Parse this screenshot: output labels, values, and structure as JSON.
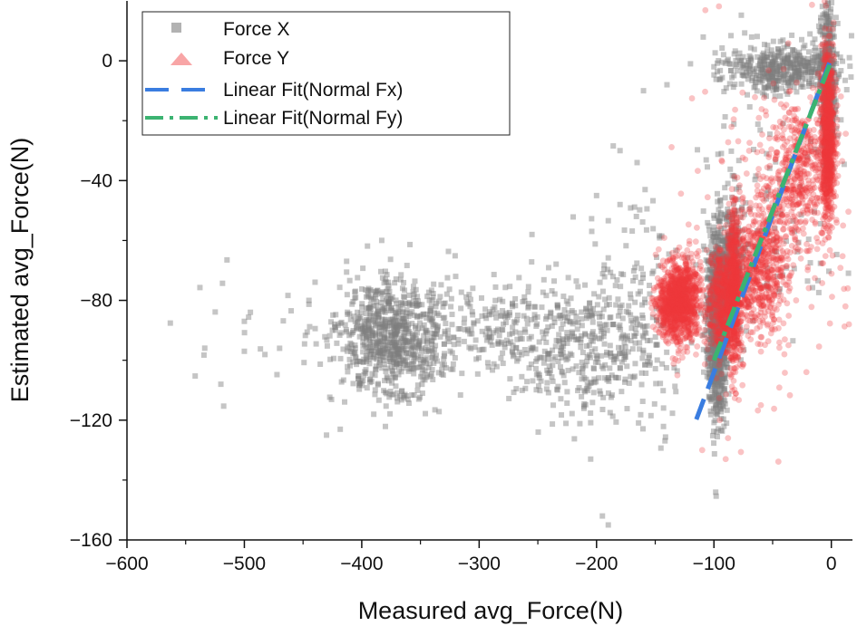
{
  "chart_data": {
    "type": "scatter",
    "title": "",
    "xlabel": "Measured avg_Force(N)",
    "ylabel": "Estimated avg_Force(N)",
    "xlim": [
      -600,
      18
    ],
    "ylim": [
      -160,
      20
    ],
    "x_ticks": [
      -600,
      -500,
      -400,
      -300,
      -200,
      -100,
      0
    ],
    "y_ticks": [
      -160,
      -120,
      -80,
      -40,
      0
    ],
    "x_tick_labels": [
      "−600",
      "−500",
      "−400",
      "−300",
      "−200",
      "−100",
      "0"
    ],
    "y_tick_labels": [
      "−160",
      "−120",
      "−80",
      "−40",
      "0"
    ],
    "legend_position": "top-left",
    "series": [
      {
        "name": "Force X",
        "marker": "square",
        "color": "#7f7f7f",
        "clusters": [
          {
            "cx": -375,
            "cy": -93,
            "sx": 22,
            "sy": 10,
            "n": 750
          },
          {
            "cx": -290,
            "cy": -89,
            "sx": 30,
            "sy": 8,
            "n": 200
          },
          {
            "cx": -210,
            "cy": -95,
            "sx": 32,
            "sy": 12,
            "n": 380
          },
          {
            "cx": -170,
            "cy": -80,
            "sx": 22,
            "sy": 22,
            "n": 120
          },
          {
            "cx": -97,
            "cy": -88,
            "sx": 4,
            "sy": 14,
            "n": 1100
          },
          {
            "cx": -87,
            "cy": -68,
            "sx": 6,
            "sy": 10,
            "n": 350
          },
          {
            "cx": -40,
            "cy": -3,
            "sx": 25,
            "sy": 4,
            "n": 450
          },
          {
            "cx": -3,
            "cy": -8,
            "sx": 3,
            "sy": 14,
            "n": 450
          },
          {
            "cx": -60,
            "cy": -45,
            "sx": 30,
            "sy": 25,
            "n": 120
          },
          {
            "cx": -450,
            "cy": -96,
            "sx": 60,
            "sy": 12,
            "n": 40
          }
        ],
        "points": [
          [
            -520,
            -108
          ],
          [
            -500,
            -87
          ],
          [
            -500,
            -97
          ],
          [
            -470,
            -96
          ],
          [
            -445,
            -80
          ],
          [
            -425,
            -90
          ],
          [
            -430,
            -125
          ],
          [
            -320,
            -72
          ],
          [
            -255,
            -58
          ],
          [
            -200,
            -45
          ],
          [
            -205,
            -133
          ],
          [
            -195,
            -152
          ],
          [
            -190,
            -155
          ],
          [
            -180,
            -30
          ],
          [
            -180,
            -48
          ],
          [
            -160,
            -10
          ],
          [
            -155,
            -75
          ],
          [
            -140,
            -8
          ],
          [
            -100,
            -2
          ],
          [
            -120,
            -1
          ]
        ]
      },
      {
        "name": "Force Y",
        "marker": "circle",
        "color": "#f0383a",
        "clusters": [
          {
            "cx": -128,
            "cy": -80,
            "sx": 8,
            "sy": 7,
            "n": 900
          },
          {
            "cx": -90,
            "cy": -80,
            "sx": 8,
            "sy": 9,
            "n": 700
          },
          {
            "cx": -83,
            "cy": -75,
            "sx": 2.5,
            "sy": 14,
            "n": 450
          },
          {
            "cx": -62,
            "cy": -68,
            "sx": 12,
            "sy": 12,
            "n": 600
          },
          {
            "cx": -28,
            "cy": -38,
            "sx": 12,
            "sy": 12,
            "n": 400
          },
          {
            "cx": -3,
            "cy": -25,
            "sx": 3,
            "sy": 14,
            "n": 800
          },
          {
            "cx": -140,
            "cy": -82,
            "sx": 5,
            "sy": 5,
            "n": 200
          },
          {
            "cx": -45,
            "cy": -50,
            "sx": 35,
            "sy": 30,
            "n": 150
          }
        ],
        "points": [
          [
            -95,
            -120
          ],
          [
            -90,
            -133
          ],
          [
            -88,
            -126
          ],
          [
            -110,
            -130
          ],
          [
            -60,
            -115
          ],
          [
            -40,
            -98
          ],
          [
            -30,
            -80
          ],
          [
            10,
            -55
          ],
          [
            12,
            -82
          ],
          [
            15,
            -88
          ],
          [
            14,
            -76
          ]
        ]
      }
    ],
    "fits": [
      {
        "name": "Linear Fit(Normal Fx)",
        "style": "dash",
        "color": "#3a7de0",
        "x_range": [
          -115,
          -1
        ],
        "slope": 1.05,
        "intercept": 1.0
      },
      {
        "name": "Linear Fit(Normal Fy)",
        "style": "dashdot",
        "color": "#3cb371",
        "x_range": [
          -100,
          0
        ],
        "slope": 1.0,
        "intercept": 0.0
      }
    ]
  }
}
